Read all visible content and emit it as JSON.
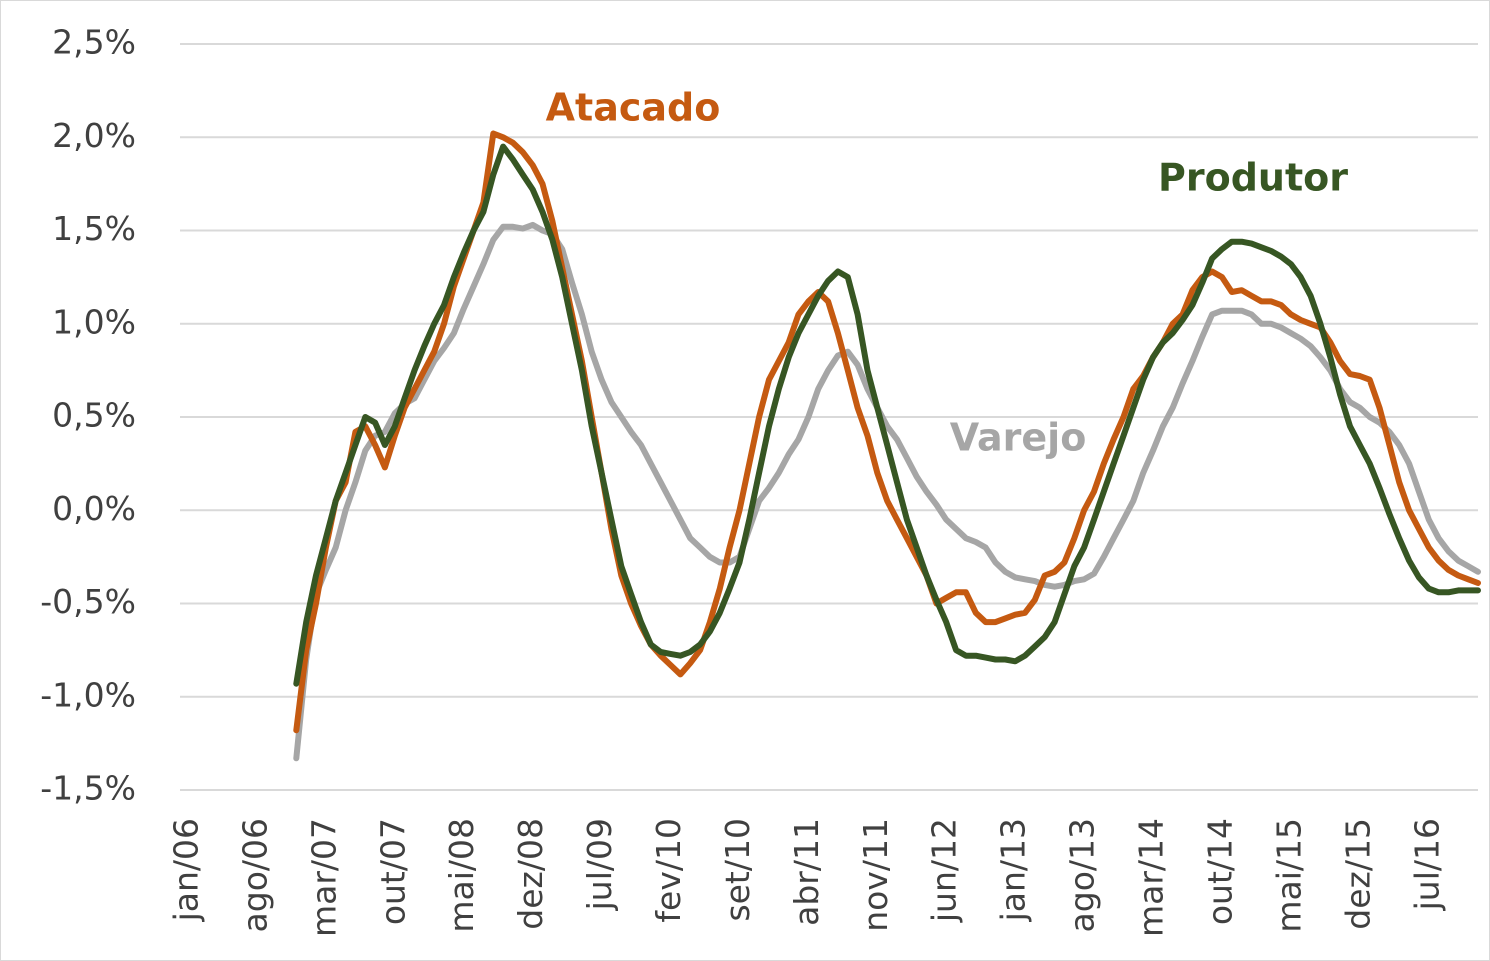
{
  "chart_data": {
    "type": "line",
    "categories": [
      "jan/06",
      null,
      null,
      null,
      null,
      null,
      null,
      "ago/06",
      null,
      null,
      null,
      null,
      null,
      null,
      "mar/07",
      null,
      null,
      null,
      null,
      null,
      null,
      "out/07",
      null,
      null,
      null,
      null,
      null,
      null,
      "mai/08",
      null,
      null,
      null,
      null,
      null,
      null,
      "dez/08",
      null,
      null,
      null,
      null,
      null,
      null,
      "jul/09",
      null,
      null,
      null,
      null,
      null,
      null,
      "fev/10",
      null,
      null,
      null,
      null,
      null,
      null,
      "set/10",
      null,
      null,
      null,
      null,
      null,
      null,
      "abr/11",
      null,
      null,
      null,
      null,
      null,
      null,
      "nov/11",
      null,
      null,
      null,
      null,
      null,
      null,
      "jun/12",
      null,
      null,
      null,
      null,
      null,
      null,
      "jan/13",
      null,
      null,
      null,
      null,
      null,
      null,
      "ago/13",
      null,
      null,
      null,
      null,
      null,
      null,
      "mar/14",
      null,
      null,
      null,
      null,
      null,
      null,
      "out/14",
      null,
      null,
      null,
      null,
      null,
      null,
      "mai/15",
      null,
      null,
      null,
      null,
      null,
      null,
      "dez/15",
      null,
      null,
      null,
      null,
      null,
      null,
      "jul/16",
      null,
      null,
      null,
      null,
      null
    ],
    "series": [
      {
        "name": "Atacado",
        "color": "#c55a11",
        "values": [
          null,
          null,
          null,
          null,
          null,
          null,
          null,
          null,
          null,
          null,
          null,
          -1.18,
          -0.75,
          -0.5,
          -0.2,
          0.05,
          0.15,
          0.42,
          0.45,
          0.35,
          0.23,
          0.4,
          0.55,
          0.65,
          0.75,
          0.85,
          1.0,
          1.2,
          1.35,
          1.5,
          1.65,
          2.02,
          2.0,
          1.97,
          1.92,
          1.85,
          1.75,
          1.55,
          1.3,
          1.05,
          0.8,
          0.5,
          0.2,
          -0.1,
          -0.35,
          -0.5,
          -0.62,
          -0.72,
          -0.78,
          -0.83,
          -0.88,
          -0.82,
          -0.75,
          -0.6,
          -0.42,
          -0.2,
          0.0,
          0.25,
          0.5,
          0.7,
          0.8,
          0.9,
          1.05,
          1.12,
          1.17,
          1.12,
          0.95,
          0.75,
          0.55,
          0.4,
          0.2,
          0.05,
          -0.05,
          -0.15,
          -0.25,
          -0.35,
          -0.5,
          -0.47,
          -0.44,
          -0.44,
          -0.55,
          -0.6,
          -0.6,
          -0.58,
          -0.56,
          -0.55,
          -0.48,
          -0.35,
          -0.33,
          -0.28,
          -0.15,
          0.0,
          0.1,
          0.25,
          0.38,
          0.5,
          0.65,
          0.72,
          0.82,
          0.9,
          1.0,
          1.05,
          1.18,
          1.25,
          1.28,
          1.25,
          1.17,
          1.18,
          1.15,
          1.12,
          1.12,
          1.1,
          1.05,
          1.02,
          1.0,
          0.98,
          0.9,
          0.8,
          0.73,
          0.72,
          0.7,
          0.55,
          0.35,
          0.15,
          0.0,
          -0.1,
          -0.2,
          -0.27,
          -0.32,
          -0.35,
          -0.37,
          -0.39
        ]
      },
      {
        "name": "Produtor",
        "color": "#375623",
        "values": [
          null,
          null,
          null,
          null,
          null,
          null,
          null,
          null,
          null,
          null,
          null,
          -0.93,
          -0.6,
          -0.35,
          -0.15,
          0.05,
          0.2,
          0.35,
          0.5,
          0.47,
          0.35,
          0.45,
          0.6,
          0.75,
          0.88,
          1.0,
          1.1,
          1.25,
          1.38,
          1.5,
          1.6,
          1.8,
          1.95,
          1.88,
          1.8,
          1.72,
          1.6,
          1.45,
          1.25,
          1.0,
          0.75,
          0.45,
          0.2,
          -0.05,
          -0.3,
          -0.45,
          -0.6,
          -0.72,
          -0.76,
          -0.77,
          -0.78,
          -0.76,
          -0.72,
          -0.65,
          -0.55,
          -0.42,
          -0.28,
          -0.05,
          0.2,
          0.45,
          0.65,
          0.82,
          0.95,
          1.05,
          1.15,
          1.23,
          1.28,
          1.25,
          1.05,
          0.75,
          0.55,
          0.35,
          0.15,
          -0.05,
          -0.2,
          -0.35,
          -0.48,
          -0.6,
          -0.75,
          -0.78,
          -0.78,
          -0.79,
          -0.8,
          -0.8,
          -0.81,
          -0.78,
          -0.73,
          -0.68,
          -0.6,
          -0.45,
          -0.3,
          -0.2,
          -0.05,
          0.1,
          0.25,
          0.4,
          0.55,
          0.7,
          0.82,
          0.9,
          0.95,
          1.02,
          1.1,
          1.22,
          1.35,
          1.4,
          1.44,
          1.44,
          1.43,
          1.41,
          1.39,
          1.36,
          1.32,
          1.25,
          1.15,
          1.0,
          0.82,
          0.62,
          0.45,
          0.35,
          0.25,
          0.12,
          -0.02,
          -0.15,
          -0.27,
          -0.36,
          -0.42,
          -0.44,
          -0.44,
          -0.43,
          -0.43,
          -0.43
        ]
      },
      {
        "name": "Varejo",
        "color": "#a6a6a6",
        "values": [
          null,
          null,
          null,
          null,
          null,
          null,
          null,
          null,
          null,
          null,
          null,
          -1.33,
          -0.8,
          -0.45,
          -0.32,
          -0.2,
          0.0,
          0.15,
          0.32,
          0.4,
          0.42,
          0.52,
          0.57,
          0.6,
          0.7,
          0.8,
          0.87,
          0.95,
          1.08,
          1.2,
          1.32,
          1.45,
          1.52,
          1.52,
          1.51,
          1.53,
          1.5,
          1.48,
          1.4,
          1.22,
          1.05,
          0.85,
          0.7,
          0.58,
          0.5,
          0.42,
          0.35,
          0.25,
          0.15,
          0.05,
          -0.05,
          -0.15,
          -0.2,
          -0.25,
          -0.28,
          -0.28,
          -0.25,
          -0.1,
          0.05,
          0.12,
          0.2,
          0.3,
          0.38,
          0.5,
          0.65,
          0.75,
          0.83,
          0.85,
          0.78,
          0.65,
          0.55,
          0.45,
          0.38,
          0.28,
          0.18,
          0.1,
          0.03,
          -0.05,
          -0.1,
          -0.15,
          -0.17,
          -0.2,
          -0.28,
          -0.33,
          -0.36,
          -0.37,
          -0.38,
          -0.4,
          -0.41,
          -0.4,
          -0.38,
          -0.37,
          -0.34,
          -0.25,
          -0.15,
          -0.05,
          0.05,
          0.2,
          0.32,
          0.45,
          0.55,
          0.68,
          0.8,
          0.93,
          1.05,
          1.07,
          1.07,
          1.07,
          1.05,
          1.0,
          1.0,
          0.98,
          0.95,
          0.92,
          0.88,
          0.82,
          0.75,
          0.65,
          0.58,
          0.55,
          0.5,
          0.47,
          0.42,
          0.35,
          0.25,
          0.1,
          -0.05,
          -0.15,
          -0.22,
          -0.27,
          -0.3,
          -0.33
        ]
      }
    ],
    "ylim": [
      -1.5,
      2.5
    ],
    "yticks": [
      {
        "value": -1.5,
        "label": "-1,5%"
      },
      {
        "value": -1.0,
        "label": "-1,0%"
      },
      {
        "value": -0.5,
        "label": "-0,5%"
      },
      {
        "value": 0.0,
        "label": "0,0%"
      },
      {
        "value": 0.5,
        "label": "0,5%"
      },
      {
        "value": 1.0,
        "label": "1,0%"
      },
      {
        "value": 1.5,
        "label": "1,5%"
      },
      {
        "value": 2.0,
        "label": "2,0%"
      },
      {
        "value": 2.5,
        "label": "2,5%"
      }
    ],
    "grid": true
  }
}
